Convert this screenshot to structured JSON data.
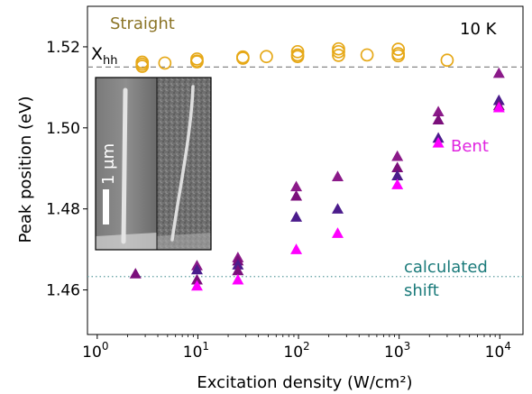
{
  "chart_data": {
    "type": "scatter",
    "title": "",
    "xlabel": "Excitation density (W/cm²)",
    "ylabel": "Peak position (eV)",
    "xscale": "log",
    "xlim": [
      0.8,
      17000
    ],
    "ylim": [
      1.449,
      1.53
    ],
    "x_ticks": [
      {
        "value": 1,
        "base": "10",
        "exp": "0"
      },
      {
        "value": 10,
        "base": "10",
        "exp": "1"
      },
      {
        "value": 100,
        "base": "10",
        "exp": "2"
      },
      {
        "value": 1000,
        "base": "10",
        "exp": "3"
      },
      {
        "value": 10000,
        "base": "10",
        "exp": "4"
      }
    ],
    "y_ticks": [
      {
        "value": 1.46,
        "label": "1.46"
      },
      {
        "value": 1.48,
        "label": "1.48"
      },
      {
        "value": 1.5,
        "label": "1.50"
      },
      {
        "value": 1.52,
        "label": "1.52"
      }
    ],
    "grid": false,
    "legend": "none",
    "reference_lines": [
      {
        "name": "xhh-line",
        "y": 1.515,
        "color": "#888888",
        "style": "dashed"
      },
      {
        "name": "calculated-shift-line",
        "y": 1.4633,
        "color": "#5f9ea0",
        "style": "dotted"
      }
    ],
    "series": [
      {
        "name": "Straight",
        "marker": "open-circle",
        "color": "#e6a817",
        "x": [
          2.8,
          2.8,
          2.8,
          4.7,
          9.8,
          9.8,
          9.8,
          28,
          28,
          48,
          98,
          98,
          98,
          250,
          250,
          250,
          480,
          980,
          980,
          980,
          3000
        ],
        "y": [
          1.5162,
          1.5152,
          1.5157,
          1.516,
          1.517,
          1.5165,
          1.5163,
          1.5175,
          1.5172,
          1.5176,
          1.5188,
          1.518,
          1.5176,
          1.5195,
          1.5188,
          1.5179,
          1.518,
          1.5194,
          1.5183,
          1.5178,
          1.5167
        ]
      },
      {
        "name": "Bent",
        "marker": "filled-triangle",
        "points": [
          {
            "x": 2.4,
            "y": 1.464,
            "color": "#7b0f7b"
          },
          {
            "x": 9.8,
            "y": 1.466,
            "color": "#8b1a89"
          },
          {
            "x": 9.8,
            "y": 1.465,
            "color": "#4b1c8c"
          },
          {
            "x": 9.8,
            "y": 1.4625,
            "color": "#7b0f7b"
          },
          {
            "x": 9.8,
            "y": 1.461,
            "color": "#ff00ff"
          },
          {
            "x": 25,
            "y": 1.468,
            "color": "#8b1a89"
          },
          {
            "x": 25,
            "y": 1.4672,
            "color": "#7b0f7b"
          },
          {
            "x": 25,
            "y": 1.4662,
            "color": "#4b1c8c"
          },
          {
            "x": 25,
            "y": 1.4648,
            "color": "#7b0f7b"
          },
          {
            "x": 25,
            "y": 1.4625,
            "color": "#ff00ff"
          },
          {
            "x": 95,
            "y": 1.4855,
            "color": "#8b1a89"
          },
          {
            "x": 95,
            "y": 1.4832,
            "color": "#7b0f7b"
          },
          {
            "x": 95,
            "y": 1.478,
            "color": "#4b1c8c"
          },
          {
            "x": 95,
            "y": 1.47,
            "color": "#ff00ff"
          },
          {
            "x": 245,
            "y": 1.488,
            "color": "#8b1a89"
          },
          {
            "x": 245,
            "y": 1.48,
            "color": "#4b1c8c"
          },
          {
            "x": 245,
            "y": 1.474,
            "color": "#ff00ff"
          },
          {
            "x": 960,
            "y": 1.493,
            "color": "#8b1a89"
          },
          {
            "x": 960,
            "y": 1.4902,
            "color": "#7b0f7b"
          },
          {
            "x": 960,
            "y": 1.4882,
            "color": "#4b1c8c"
          },
          {
            "x": 960,
            "y": 1.486,
            "color": "#ff00ff"
          },
          {
            "x": 2450,
            "y": 1.504,
            "color": "#8b1a89"
          },
          {
            "x": 2450,
            "y": 1.502,
            "color": "#7b0f7b"
          },
          {
            "x": 2450,
            "y": 1.4975,
            "color": "#4b1c8c"
          },
          {
            "x": 2450,
            "y": 1.4963,
            "color": "#ff00ff"
          },
          {
            "x": 9800,
            "y": 1.5135,
            "color": "#8b1a89"
          },
          {
            "x": 9800,
            "y": 1.5068,
            "color": "#4b1c8c"
          },
          {
            "x": 9800,
            "y": 1.5055,
            "color": "#7b0f7b"
          },
          {
            "x": 9800,
            "y": 1.505,
            "color": "#ff00ff"
          }
        ]
      }
    ],
    "annotations": {
      "temperature": {
        "text": "10 K",
        "color": "#000000"
      },
      "xhh": {
        "main": "X",
        "sub": "hh",
        "color": "#000000"
      },
      "straight": {
        "text": "Straight",
        "color": "#8b7426"
      },
      "bent": {
        "text": "Bent",
        "color": "#e024e0"
      },
      "calc_line1": {
        "text": "calculated",
        "color": "#1a7a7a"
      },
      "calc_line2": {
        "text": "shift",
        "color": "#1a7a7a"
      },
      "scale_bar": {
        "text": "1 μm",
        "color": "#ffffff"
      }
    }
  }
}
